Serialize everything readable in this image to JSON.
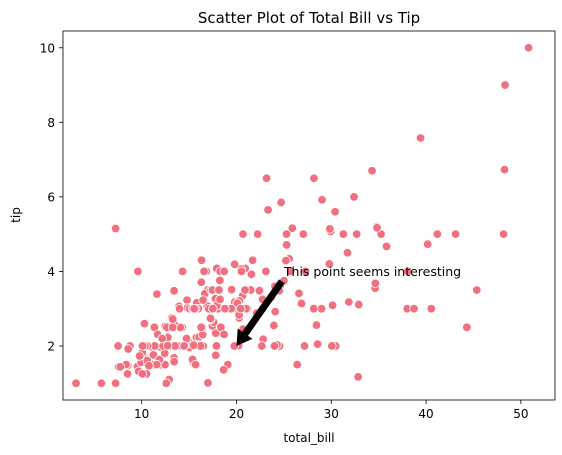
{
  "chart_data": {
    "type": "scatter",
    "title": "Scatter Plot of Total Bill vs Tip",
    "xlabel": "total_bill",
    "ylabel": "tip",
    "xlim": [
      1.7,
      53.6
    ],
    "ylim": [
      0.55,
      10.45
    ],
    "xticks": [
      10,
      20,
      30,
      40,
      50
    ],
    "yticks": [
      2,
      4,
      6,
      8,
      10
    ],
    "grid": false,
    "marker_color": "#f1707f",
    "marker_edge_color": "#ffffff",
    "annotation": {
      "text": "This point seems interesting",
      "point": [
        20,
        2
      ],
      "text_position": [
        25,
        4
      ]
    },
    "series": [
      {
        "points": [
          [
            16.99,
            1.01
          ],
          [
            10.34,
            1.66
          ],
          [
            21.01,
            3.5
          ],
          [
            23.68,
            3.31
          ],
          [
            24.59,
            3.61
          ],
          [
            25.29,
            4.71
          ],
          [
            8.77,
            2.0
          ],
          [
            26.88,
            3.12
          ],
          [
            15.04,
            1.96
          ],
          [
            14.78,
            3.23
          ],
          [
            10.27,
            1.71
          ],
          [
            35.26,
            5.0
          ],
          [
            15.42,
            1.57
          ],
          [
            18.43,
            3.0
          ],
          [
            14.83,
            3.02
          ],
          [
            21.58,
            3.92
          ],
          [
            10.33,
            1.67
          ],
          [
            16.29,
            3.71
          ],
          [
            16.97,
            3.5
          ],
          [
            20.65,
            3.35
          ],
          [
            17.92,
            4.08
          ],
          [
            20.29,
            2.75
          ],
          [
            15.77,
            2.23
          ],
          [
            39.42,
            7.58
          ],
          [
            19.82,
            3.18
          ],
          [
            17.81,
            2.34
          ],
          [
            13.37,
            2.0
          ],
          [
            12.69,
            2.0
          ],
          [
            21.7,
            4.3
          ],
          [
            19.65,
            3.0
          ],
          [
            9.55,
            1.45
          ],
          [
            18.35,
            2.5
          ],
          [
            15.06,
            3.0
          ],
          [
            20.69,
            2.45
          ],
          [
            17.78,
            3.27
          ],
          [
            24.06,
            3.6
          ],
          [
            16.31,
            2.0
          ],
          [
            16.93,
            3.07
          ],
          [
            18.69,
            2.31
          ],
          [
            31.27,
            5.0
          ],
          [
            16.04,
            2.24
          ],
          [
            17.46,
            2.54
          ],
          [
            13.94,
            3.06
          ],
          [
            9.68,
            1.32
          ],
          [
            30.4,
            5.6
          ],
          [
            18.29,
            3.0
          ],
          [
            22.23,
            5.0
          ],
          [
            32.4,
            6.0
          ],
          [
            28.55,
            2.05
          ],
          [
            18.04,
            3.0
          ],
          [
            12.54,
            2.5
          ],
          [
            10.29,
            2.6
          ],
          [
            34.81,
            5.2
          ],
          [
            9.94,
            1.56
          ],
          [
            25.56,
            4.34
          ],
          [
            19.49,
            3.51
          ],
          [
            38.01,
            3.0
          ],
          [
            26.41,
            1.5
          ],
          [
            11.24,
            1.76
          ],
          [
            48.27,
            6.73
          ],
          [
            20.29,
            3.21
          ],
          [
            13.81,
            2.0
          ],
          [
            11.02,
            1.98
          ],
          [
            18.29,
            3.76
          ],
          [
            17.59,
            2.64
          ],
          [
            20.08,
            3.15
          ],
          [
            16.45,
            2.47
          ],
          [
            3.07,
            1.0
          ],
          [
            20.23,
            2.01
          ],
          [
            15.01,
            2.09
          ],
          [
            12.02,
            1.97
          ],
          [
            17.07,
            3.0
          ],
          [
            26.86,
            3.14
          ],
          [
            25.28,
            5.0
          ],
          [
            14.73,
            2.2
          ],
          [
            10.51,
            1.25
          ],
          [
            17.92,
            3.08
          ],
          [
            27.2,
            4.0
          ],
          [
            22.76,
            3.0
          ],
          [
            17.29,
            2.71
          ],
          [
            19.44,
            3.0
          ],
          [
            16.66,
            3.4
          ],
          [
            10.07,
            1.83
          ],
          [
            32.68,
            5.0
          ],
          [
            15.98,
            2.03
          ],
          [
            34.83,
            5.17
          ],
          [
            13.03,
            2.0
          ],
          [
            18.28,
            4.0
          ],
          [
            24.71,
            5.85
          ],
          [
            21.16,
            3.0
          ],
          [
            28.97,
            3.0
          ],
          [
            22.49,
            3.5
          ],
          [
            5.75,
            1.0
          ],
          [
            16.32,
            4.3
          ],
          [
            22.75,
            3.25
          ],
          [
            40.17,
            4.73
          ],
          [
            27.28,
            4.0
          ],
          [
            12.03,
            1.5
          ],
          [
            21.01,
            3.0
          ],
          [
            12.46,
            1.5
          ],
          [
            11.35,
            2.5
          ],
          [
            15.38,
            3.0
          ],
          [
            44.3,
            2.5
          ],
          [
            22.42,
            3.48
          ],
          [
            20.92,
            4.08
          ],
          [
            15.36,
            1.64
          ],
          [
            20.49,
            4.06
          ],
          [
            25.21,
            4.29
          ],
          [
            18.24,
            3.76
          ],
          [
            14.31,
            4.0
          ],
          [
            14.0,
            3.0
          ],
          [
            7.25,
            1.0
          ],
          [
            38.07,
            4.0
          ],
          [
            23.95,
            2.55
          ],
          [
            25.71,
            4.0
          ],
          [
            17.31,
            3.5
          ],
          [
            29.93,
            5.07
          ],
          [
            10.65,
            1.5
          ],
          [
            12.43,
            1.8
          ],
          [
            24.08,
            2.92
          ],
          [
            11.69,
            2.31
          ],
          [
            13.42,
            1.68
          ],
          [
            14.26,
            2.5
          ],
          [
            15.95,
            2.0
          ],
          [
            12.48,
            2.52
          ],
          [
            29.8,
            4.2
          ],
          [
            8.52,
            1.48
          ],
          [
            14.52,
            2.0
          ],
          [
            11.38,
            2.0
          ],
          [
            22.82,
            2.18
          ],
          [
            19.08,
            1.5
          ],
          [
            20.27,
            2.83
          ],
          [
            11.17,
            1.5
          ],
          [
            12.26,
            2.0
          ],
          [
            18.26,
            3.25
          ],
          [
            8.51,
            1.25
          ],
          [
            10.33,
            2.0
          ],
          [
            14.15,
            2.0
          ],
          [
            16.0,
            2.0
          ],
          [
            13.16,
            2.75
          ],
          [
            17.47,
            3.5
          ],
          [
            34.3,
            6.7
          ],
          [
            41.19,
            5.0
          ],
          [
            27.05,
            5.0
          ],
          [
            16.43,
            2.3
          ],
          [
            8.35,
            1.5
          ],
          [
            18.64,
            1.36
          ],
          [
            11.87,
            1.63
          ],
          [
            9.78,
            1.73
          ],
          [
            7.51,
            2.0
          ],
          [
            14.07,
            2.5
          ],
          [
            13.13,
            2.0
          ],
          [
            17.26,
            2.74
          ],
          [
            24.55,
            2.0
          ],
          [
            19.77,
            2.0
          ],
          [
            29.85,
            5.14
          ],
          [
            48.17,
            5.0
          ],
          [
            25.0,
            3.75
          ],
          [
            13.39,
            2.61
          ],
          [
            16.49,
            2.0
          ],
          [
            21.5,
            3.5
          ],
          [
            12.66,
            2.5
          ],
          [
            16.21,
            2.0
          ],
          [
            13.81,
            2.0
          ],
          [
            17.51,
            3.0
          ],
          [
            24.52,
            3.48
          ],
          [
            20.76,
            2.24
          ],
          [
            31.71,
            4.5
          ],
          [
            10.59,
            1.61
          ],
          [
            10.63,
            2.0
          ],
          [
            50.81,
            10.0
          ],
          [
            15.81,
            3.16
          ],
          [
            7.25,
            5.15
          ],
          [
            31.85,
            3.18
          ],
          [
            16.82,
            4.0
          ],
          [
            32.9,
            3.11
          ],
          [
            17.89,
            2.0
          ],
          [
            14.48,
            2.0
          ],
          [
            9.6,
            4.0
          ],
          [
            34.63,
            3.55
          ],
          [
            34.65,
            3.68
          ],
          [
            23.33,
            5.65
          ],
          [
            45.35,
            3.5
          ],
          [
            23.17,
            6.5
          ],
          [
            40.55,
            3.0
          ],
          [
            20.69,
            5.0
          ],
          [
            20.9,
            3.5
          ],
          [
            30.46,
            2.0
          ],
          [
            18.15,
            3.5
          ],
          [
            23.1,
            4.0
          ],
          [
            15.69,
            1.5
          ],
          [
            19.81,
            4.19
          ],
          [
            28.44,
            2.56
          ],
          [
            15.48,
            2.02
          ],
          [
            16.58,
            4.0
          ],
          [
            7.56,
            1.44
          ],
          [
            10.34,
            2.0
          ],
          [
            43.11,
            5.0
          ],
          [
            13.0,
            2.0
          ],
          [
            13.51,
            2.0
          ],
          [
            18.71,
            4.0
          ],
          [
            12.74,
            2.01
          ],
          [
            16.4,
            2.5
          ],
          [
            20.53,
            4.0
          ],
          [
            16.47,
            3.23
          ],
          [
            26.59,
            3.41
          ],
          [
            38.73,
            3.0
          ],
          [
            24.27,
            2.03
          ],
          [
            12.76,
            2.23
          ],
          [
            30.06,
            2.0
          ],
          [
            25.89,
            5.16
          ],
          [
            48.33,
            9.0
          ],
          [
            13.27,
            2.5
          ],
          [
            28.17,
            6.5
          ],
          [
            12.9,
            1.1
          ],
          [
            28.15,
            3.0
          ],
          [
            11.59,
            1.5
          ],
          [
            7.74,
            1.44
          ],
          [
            30.14,
            3.09
          ],
          [
            12.16,
            2.2
          ],
          [
            13.42,
            3.48
          ],
          [
            8.58,
            1.92
          ],
          [
            15.98,
            3.0
          ],
          [
            13.42,
            1.58
          ],
          [
            16.27,
            2.5
          ],
          [
            10.09,
            2.0
          ],
          [
            20.45,
            3.0
          ],
          [
            13.28,
            2.72
          ],
          [
            22.12,
            2.88
          ],
          [
            24.01,
            2.0
          ],
          [
            15.69,
            3.0
          ],
          [
            11.61,
            3.39
          ],
          [
            10.77,
            1.47
          ],
          [
            15.53,
            3.0
          ],
          [
            10.07,
            1.25
          ],
          [
            12.6,
            1.0
          ],
          [
            32.83,
            1.17
          ],
          [
            35.83,
            4.67
          ],
          [
            29.03,
            5.92
          ],
          [
            27.18,
            2.0
          ],
          [
            22.67,
            2.0
          ],
          [
            17.82,
            1.75
          ],
          [
            18.78,
            3.0
          ]
        ]
      }
    ]
  }
}
